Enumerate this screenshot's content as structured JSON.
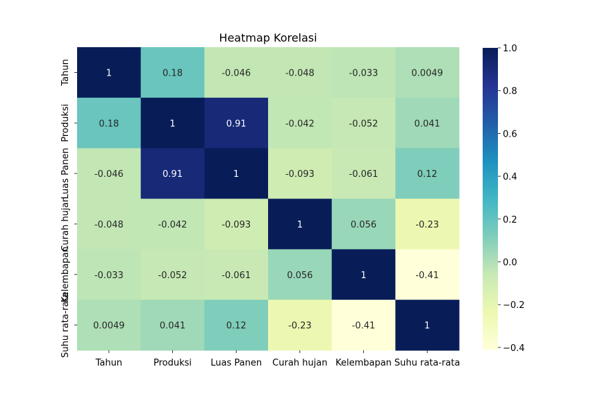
{
  "chart_data": {
    "type": "heatmap",
    "title": "Heatmap Korelasi",
    "x_labels": [
      "Tahun",
      "Produksi",
      "Luas Panen",
      "Curah hujan",
      "Kelembapan",
      "Suhu rata-rata"
    ],
    "y_labels": [
      "Tahun",
      "Produksi",
      "Luas Panen",
      "Curah hujan",
      "Kelembapan",
      "Suhu rata-rata"
    ],
    "values": [
      [
        1,
        0.18,
        -0.046,
        -0.048,
        -0.033,
        0.0049
      ],
      [
        0.18,
        1,
        0.91,
        -0.042,
        -0.052,
        0.041
      ],
      [
        -0.046,
        0.91,
        1,
        -0.093,
        -0.061,
        0.12
      ],
      [
        -0.048,
        -0.042,
        -0.093,
        1,
        0.056,
        -0.23
      ],
      [
        -0.033,
        -0.052,
        -0.061,
        0.056,
        1,
        -0.41
      ],
      [
        0.0049,
        0.041,
        0.12,
        -0.23,
        -0.41,
        1
      ]
    ],
    "annotations": [
      [
        "1",
        "0.18",
        "-0.046",
        "-0.048",
        "-0.033",
        "0.0049"
      ],
      [
        "0.18",
        "1",
        "0.91",
        "-0.042",
        "-0.052",
        "0.041"
      ],
      [
        "-0.046",
        "0.91",
        "1",
        "-0.093",
        "-0.061",
        "0.12"
      ],
      [
        "-0.048",
        "-0.042",
        "-0.093",
        "1",
        "0.056",
        "-0.23"
      ],
      [
        "-0.033",
        "-0.052",
        "-0.061",
        "0.056",
        "1",
        "-0.41"
      ],
      [
        "0.0049",
        "0.041",
        "0.12",
        "-0.23",
        "-0.41",
        "1"
      ]
    ],
    "colormap": "YlGnBu",
    "vmin": -0.41,
    "vmax": 1,
    "colorbar": {
      "ticks": [
        1.0,
        0.8,
        0.6,
        0.4,
        0.2,
        0.0,
        -0.2,
        -0.4
      ],
      "tick_labels": [
        "1.0",
        "0.8",
        "0.6",
        "0.4",
        "0.2",
        "0.0",
        "−0.2",
        "−0.4"
      ],
      "placement": "right"
    }
  }
}
